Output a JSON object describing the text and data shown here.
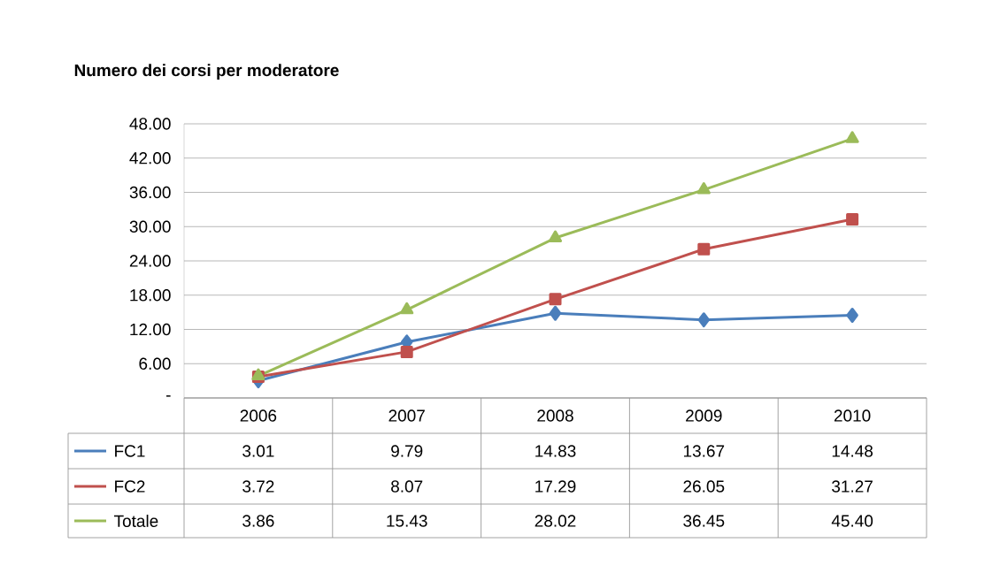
{
  "chart_data": {
    "type": "line",
    "title": "Numero dei corsi per moderatore",
    "categories": [
      "2006",
      "2007",
      "2008",
      "2009",
      "2010"
    ],
    "series": [
      {
        "name": "FC1",
        "color": "#4a7ebb",
        "marker": "diamond",
        "values": [
          3.01,
          9.79,
          14.83,
          13.67,
          14.48
        ],
        "value_labels": [
          "3.01",
          "9.79",
          "14.83",
          "13.67",
          "14.48"
        ]
      },
      {
        "name": "FC2",
        "color": "#c0504d",
        "marker": "square",
        "values": [
          3.72,
          8.07,
          17.29,
          26.05,
          31.27
        ],
        "value_labels": [
          "3.72",
          "8.07",
          "17.29",
          "26.05",
          "31.27"
        ]
      },
      {
        "name": "Totale",
        "color": "#9bbb59",
        "marker": "triangle",
        "values": [
          3.86,
          15.43,
          28.02,
          36.45,
          45.4
        ],
        "value_labels": [
          "3.86",
          "15.43",
          "28.02",
          "36.45",
          "45.40"
        ]
      }
    ],
    "ylim": [
      0,
      48
    ],
    "yticks": [
      {
        "value": 0,
        "label": "-"
      },
      {
        "value": 6,
        "label": "6.00"
      },
      {
        "value": 12,
        "label": "12.00"
      },
      {
        "value": 18,
        "label": "18.00"
      },
      {
        "value": 24,
        "label": "24.00"
      },
      {
        "value": 30,
        "label": "30.00"
      },
      {
        "value": 36,
        "label": "36.00"
      },
      {
        "value": 42,
        "label": "42.00"
      },
      {
        "value": 48,
        "label": "48.00"
      }
    ],
    "grid": "y",
    "legend": "bottom",
    "line_style": "solid"
  }
}
